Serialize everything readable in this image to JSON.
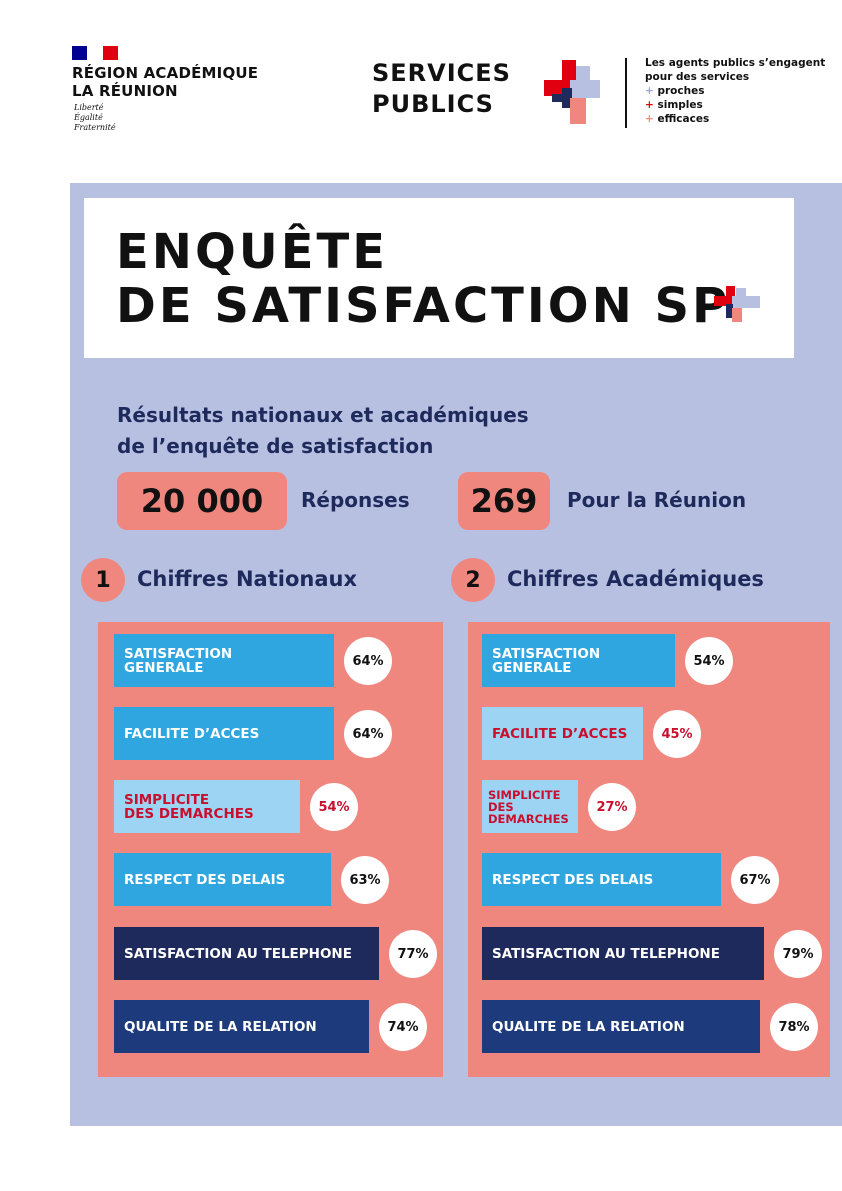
{
  "header": {
    "region_line1": "RÉGION ACADÉMIQUE",
    "region_line2": "LA RÉUNION",
    "motto": [
      "Liberté",
      "Égalité",
      "Fraternité"
    ],
    "services_line1": "SERVICES",
    "services_line2": "PUBLICS",
    "tagline_line1": "Les agents publics s’engagent",
    "tagline_line2": "pour des services",
    "tagline_items": [
      "proches",
      "simples",
      "efficaces"
    ],
    "plus": "+"
  },
  "title": {
    "line1": "ENQUÊTE",
    "line2": "DE SATISFACTION SP"
  },
  "intro": {
    "line1": "Résultats nationaux et académiques",
    "line2": "de l’enquête de satisfaction"
  },
  "stats": [
    {
      "value": "20 000",
      "label": "Réponses"
    },
    {
      "value": "269",
      "label": "Pour la Réunion"
    }
  ],
  "colors": {
    "panel": "#b8c0e2",
    "salmon": "#f0877f",
    "light_blue": "#9dd4f3",
    "mid_blue": "#2fa6e0",
    "dark_navy": "#1f2a5c",
    "navy": "#1d3a7c",
    "red_text": "#c8102e"
  },
  "chart_data": [
    {
      "type": "bar",
      "number": "1",
      "title": "Chiffres Nationaux",
      "categories": [
        "SATISFACTION\nGENERALE",
        "FACILITE D’ACCES",
        "SIMPLICITE\nDES DEMARCHES",
        "RESPECT DES DELAIS",
        "SATISFACTION AU TELEPHONE",
        "QUALITE DE LA RELATION"
      ],
      "values": [
        64,
        64,
        54,
        63,
        77,
        74
      ],
      "labels": [
        "64%",
        "64%",
        "54%",
        "63%",
        "77%",
        "74%"
      ],
      "styles": [
        "mid",
        "mid",
        "light",
        "mid",
        "dark",
        "navy"
      ]
    },
    {
      "type": "bar",
      "number": "2",
      "title": "Chiffres Académiques",
      "categories": [
        "SATISFACTION\nGENERALE",
        "FACILITE D’ACCES",
        "SIMPLICITE\nDES\nDEMARCHES",
        "RESPECT DES DELAIS",
        "SATISFACTION AU TELEPHONE",
        "QUALITE DE LA RELATION"
      ],
      "values": [
        54,
        45,
        27,
        67,
        79,
        78
      ],
      "labels": [
        "54%",
        "45%",
        "27%",
        "67%",
        "79%",
        "78%"
      ],
      "styles": [
        "mid",
        "light",
        "light",
        "mid",
        "dark",
        "navy"
      ]
    }
  ]
}
